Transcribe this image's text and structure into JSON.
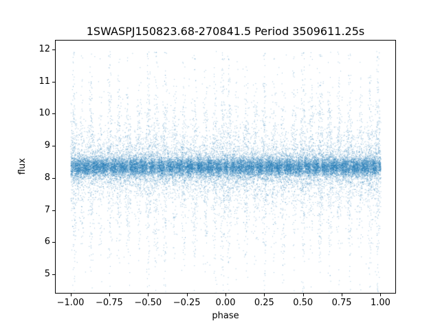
{
  "figure": {
    "background": "#ffffff"
  },
  "chart_data": {
    "type": "scatter",
    "title": "1SWASPJ150823.68-270841.5 Period 3509611.25s",
    "xlabel": "phase",
    "ylabel": "flux",
    "xlim": [
      -1.1,
      1.1
    ],
    "ylim": [
      4.4,
      12.3
    ],
    "xticks": [
      -1.0,
      -0.75,
      -0.5,
      -0.25,
      0.0,
      0.25,
      0.5,
      0.75,
      1.0
    ],
    "xtick_labels": [
      "−1.00",
      "−0.75",
      "−0.50",
      "−0.25",
      "0.00",
      "0.25",
      "0.50",
      "0.75",
      "1.00"
    ],
    "yticks": [
      5,
      6,
      7,
      8,
      9,
      10,
      11,
      12
    ],
    "ytick_labels": [
      "5",
      "6",
      "7",
      "8",
      "9",
      "10",
      "11",
      "12"
    ],
    "grid": false,
    "legend": null,
    "marker_color": "#1f77b4",
    "marker_alpha": 0.45,
    "marker_size_px": 1,
    "distribution": {
      "note": "phase-folded light curve shown over two cycles [-1,1]; dense baseline band with vertical high-scatter streaks at repeating phases",
      "seed": 7,
      "n_points": 34000,
      "columns_per_cycle": 300,
      "baseline_mean": 8.35,
      "baseline_sigma": 0.16,
      "wide_noise_prob": 0.2,
      "wide_noise_sigma": 0.45,
      "background_outlier_prob": 0.012,
      "flux_min": 4.45,
      "flux_max": 11.95,
      "spike_width": 0.01,
      "spike_phases": [
        0.02,
        0.07,
        0.13,
        0.19,
        0.25,
        0.31,
        0.37,
        0.44,
        0.5,
        0.55,
        0.61,
        0.67,
        0.73,
        0.8,
        0.87,
        0.93,
        0.98
      ],
      "spike_strengths": [
        0.85,
        0.5,
        0.65,
        0.5,
        0.8,
        0.6,
        0.7,
        0.55,
        0.9,
        0.75,
        0.85,
        0.6,
        0.7,
        0.8,
        0.55,
        0.7,
        0.9
      ],
      "spike_outlier_prob": 0.5,
      "spike_outlier_scale": 1.5
    }
  }
}
